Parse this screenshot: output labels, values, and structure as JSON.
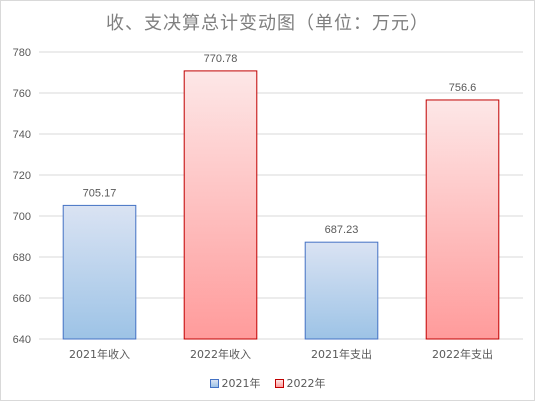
{
  "chart_data": {
    "type": "bar",
    "title": "收、支决算总计变动图（单位：万元）",
    "categories": [
      "2021年收入",
      "2022年收入",
      "2021年支出",
      "2022年支出"
    ],
    "values": [
      705.17,
      770.78,
      687.23,
      756.6
    ],
    "value_labels": [
      "705.17",
      "770.78",
      "687.23",
      "756.6"
    ],
    "bar_series": [
      "2021年",
      "2022年",
      "2021年",
      "2022年"
    ],
    "series": [
      {
        "name": "2021年",
        "color": "#4472c4",
        "fill_top": "#dae3f3",
        "fill_bottom": "#9dc3e6"
      },
      {
        "name": "2022年",
        "color": "#c00000",
        "fill_top": "#fde7e7",
        "fill_bottom": "#ff9b9b"
      }
    ],
    "ylim": [
      640,
      780
    ],
    "yticks": [
      640,
      660,
      680,
      700,
      720,
      740,
      760,
      780
    ],
    "grid": true,
    "legend_position": "bottom"
  }
}
